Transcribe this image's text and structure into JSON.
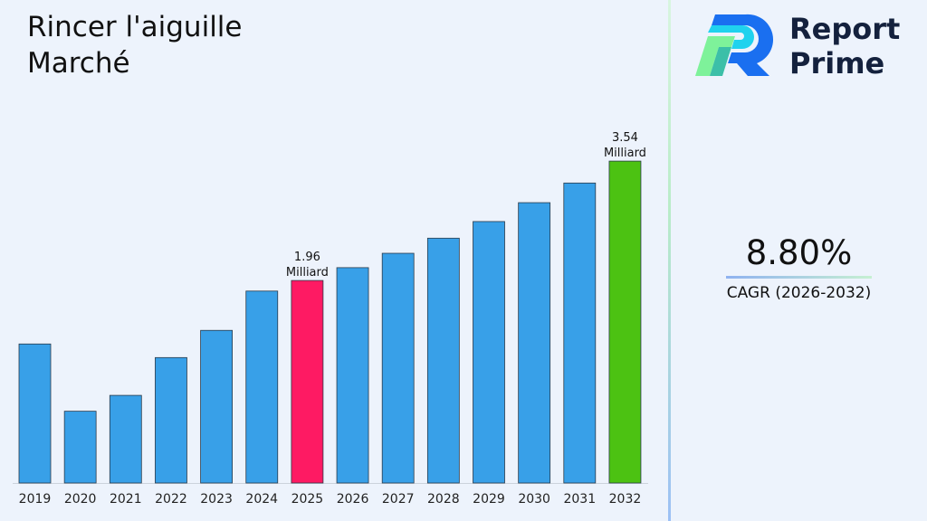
{
  "title": "Rincer l'aiguille\nMarché",
  "brand": {
    "line1": "Report",
    "line2": "Prime"
  },
  "cagr": {
    "value": "8.80%",
    "label": "CAGR (2026-2032)"
  },
  "colors": {
    "default_bar": "#38a0e8",
    "highlight_2025": "#fe1a63",
    "highlight_2032": "#4cc212",
    "background": "#edf3fc"
  },
  "chart_data": {
    "type": "bar",
    "categories": [
      "2019",
      "2020",
      "2021",
      "2022",
      "2023",
      "2024",
      "2025",
      "2026",
      "2027",
      "2028",
      "2029",
      "2030",
      "2031",
      "2032"
    ],
    "values": [
      1.12,
      0.23,
      0.44,
      0.94,
      1.3,
      1.82,
      1.96,
      2.13,
      2.32,
      2.52,
      2.74,
      2.99,
      3.25,
      3.54
    ],
    "unit": "Milliard",
    "data_labels": [
      {
        "category": "2025",
        "value": "1.96",
        "unit": "Milliard"
      },
      {
        "category": "2032",
        "value": "3.54",
        "unit": "Milliard"
      }
    ],
    "title": "Rincer l'aiguille Marché",
    "xlabel": "",
    "ylabel": "",
    "grid": false,
    "legend": "none"
  }
}
